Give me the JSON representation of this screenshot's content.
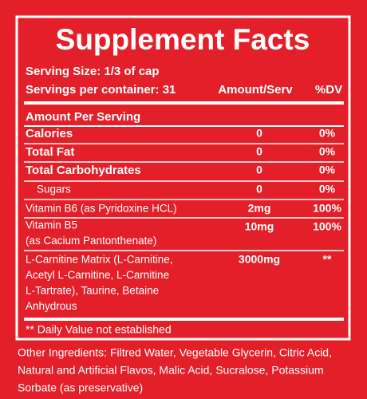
{
  "header": {
    "title": "Supplement Facts",
    "serving_size": "Serving Size: 1/3 of cap",
    "servings_per_container": "Servings per container: 31",
    "amount_column": "Amount/Serv",
    "dv_column": "%DV"
  },
  "table": {
    "section": "Amount Per Serving",
    "rows": [
      {
        "lines": [
          "Calories"
        ],
        "amount": "0",
        "dv": "0%"
      },
      {
        "lines": [
          "Total Fat"
        ],
        "amount": "0",
        "dv": "0%"
      },
      {
        "lines": [
          "Total Carbohydrates"
        ],
        "amount": "0",
        "dv": "0%"
      },
      {
        "lines": [
          "Sugars"
        ],
        "amount": "0",
        "dv": "0%"
      },
      {
        "lines": [
          "Vitamin B6 (as Pyridoxine HCL)"
        ],
        "amount": "2mg",
        "dv": "100%"
      },
      {
        "lines": [
          "Vitamin B5",
          "(as Cacium Pantonthenate)"
        ],
        "amount": "10mg",
        "dv": "100%"
      },
      {
        "lines": [
          "L-Carnitine Matrix (L-Carnitine,",
          "Acetyl L-Carnitine, L-Carnitine",
          "L-Tartrate), Taurine, Betaine",
          "Anhydrous"
        ],
        "amount": "3000mg",
        "dv": "**"
      }
    ],
    "footnote": "** Daily Value not established"
  },
  "other_ingredients": [
    "Other Ingredients: Filtred Water, Vegetable Glycerin, Citric Acid,",
    "Natural and Artificial Flavos, Malic Acid, Sucralose, Potassium",
    "Sorbate (as preservative)"
  ]
}
